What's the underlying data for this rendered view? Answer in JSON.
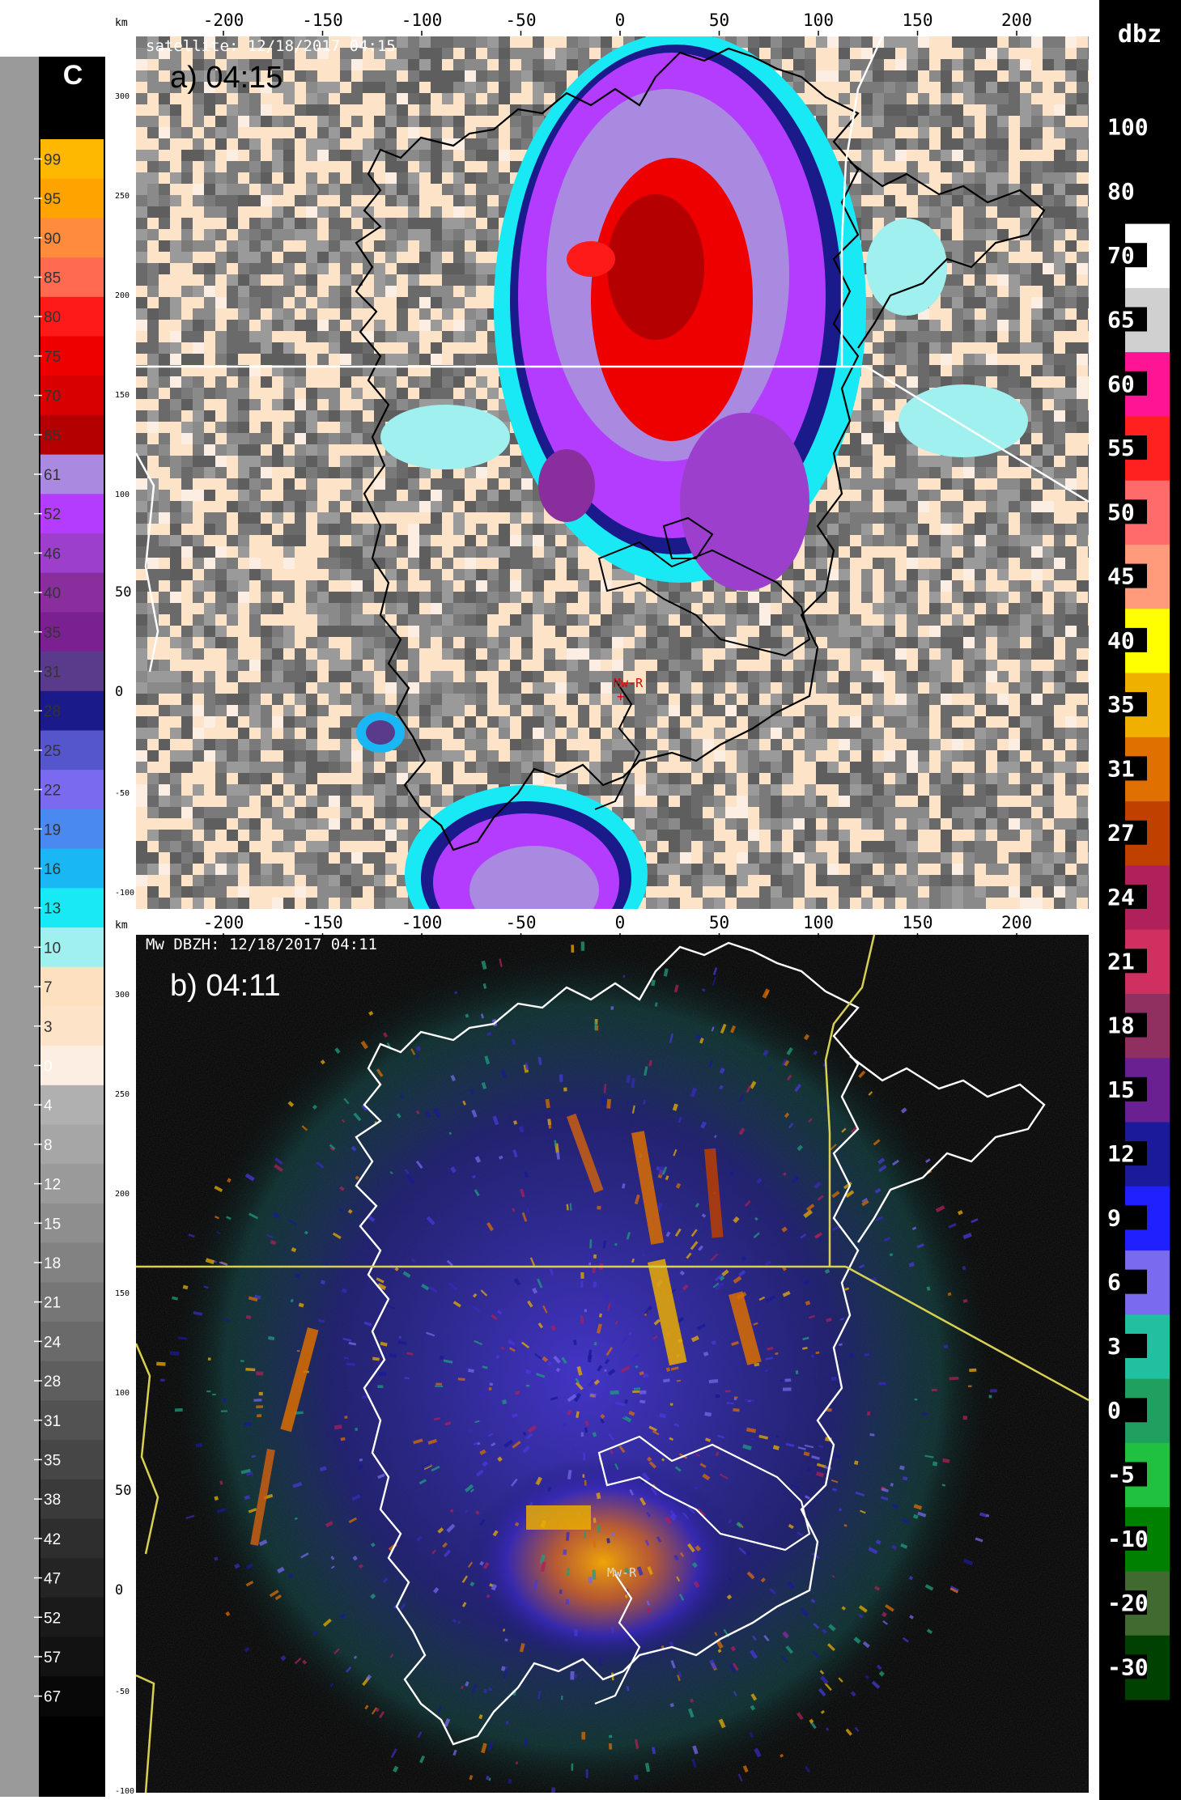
{
  "panel_a": {
    "header": "satellite: 12/18/2017 04:15",
    "label": "a) 04:15",
    "site_marker": "Mw-R"
  },
  "panel_b": {
    "header": "Mw DBZH: 12/18/2017 04:11",
    "label": "b) 04:11",
    "site_marker": "Mw-R"
  },
  "axes": {
    "x_unit": "km",
    "y_unit": "km",
    "x_ticks": [
      "-200",
      "-150",
      "-100",
      "-50",
      "0",
      "50",
      "100",
      "150",
      "200"
    ],
    "y_ticks": [
      "300",
      "250",
      "200",
      "150",
      "100",
      "50",
      "0",
      "-50",
      "-100"
    ]
  },
  "left_scale": {
    "title": "C",
    "entries": [
      {
        "label": "99",
        "color": "#ffb800"
      },
      {
        "label": "95",
        "color": "#ffa300"
      },
      {
        "label": "90",
        "color": "#ff8c3c"
      },
      {
        "label": "85",
        "color": "#ff6a50"
      },
      {
        "label": "80",
        "color": "#ff1a1a"
      },
      {
        "label": "75",
        "color": "#ee0000"
      },
      {
        "label": "70",
        "color": "#d80000"
      },
      {
        "label": "65",
        "color": "#b40000"
      },
      {
        "label": "61",
        "color": "#a98ae0"
      },
      {
        "label": "52",
        "color": "#b43cff"
      },
      {
        "label": "46",
        "color": "#9b3fcc"
      },
      {
        "label": "40",
        "color": "#8a2e9e"
      },
      {
        "label": "35",
        "color": "#7b2090"
      },
      {
        "label": "31",
        "color": "#5a3a8a"
      },
      {
        "label": "28",
        "color": "#1a1a8a"
      },
      {
        "label": "25",
        "color": "#5555cc"
      },
      {
        "label": "22",
        "color": "#7a6af0"
      },
      {
        "label": "19",
        "color": "#4a8af0"
      },
      {
        "label": "16",
        "color": "#19b8f5"
      },
      {
        "label": "13",
        "color": "#19e8f5"
      },
      {
        "label": "10",
        "color": "#a0f0f0"
      },
      {
        "label": "7",
        "color": "#fde0c0"
      },
      {
        "label": "3",
        "color": "#fde4c8"
      },
      {
        "label": "0",
        "color": "#fdeee4"
      },
      {
        "label": "4",
        "color": "#b0b0b0"
      },
      {
        "label": "8",
        "color": "#a6a6a6"
      },
      {
        "label": "12",
        "color": "#9a9a9a"
      },
      {
        "label": "15",
        "color": "#8e8e8e"
      },
      {
        "label": "18",
        "color": "#828282"
      },
      {
        "label": "21",
        "color": "#767676"
      },
      {
        "label": "24",
        "color": "#6a6a6a"
      },
      {
        "label": "28",
        "color": "#5e5e5e"
      },
      {
        "label": "31",
        "color": "#525252"
      },
      {
        "label": "35",
        "color": "#464646"
      },
      {
        "label": "38",
        "color": "#3a3a3a"
      },
      {
        "label": "42",
        "color": "#2e2e2e"
      },
      {
        "label": "47",
        "color": "#242424"
      },
      {
        "label": "52",
        "color": "#1a1a1a"
      },
      {
        "label": "57",
        "color": "#121212"
      },
      {
        "label": "67",
        "color": "#080808"
      }
    ]
  },
  "right_scale": {
    "title": "dbz",
    "entries": [
      {
        "label": "100",
        "color": "#000000"
      },
      {
        "label": "80",
        "color": "#000000"
      },
      {
        "label": "70",
        "color": "#ffffff"
      },
      {
        "label": "65",
        "color": "#d0d0d0"
      },
      {
        "label": "60",
        "color": "#ff1493"
      },
      {
        "label": "55",
        "color": "#ff2020"
      },
      {
        "label": "50",
        "color": "#ff6a6a"
      },
      {
        "label": "45",
        "color": "#ff9a7a"
      },
      {
        "label": "40",
        "color": "#ffff00"
      },
      {
        "label": "35",
        "color": "#f0b000"
      },
      {
        "label": "31",
        "color": "#e07000"
      },
      {
        "label": "27",
        "color": "#c04000"
      },
      {
        "label": "24",
        "color": "#b0205a"
      },
      {
        "label": "21",
        "color": "#d03060"
      },
      {
        "label": "18",
        "color": "#903060"
      },
      {
        "label": "15",
        "color": "#6a2090"
      },
      {
        "label": "12",
        "color": "#1a1a9a"
      },
      {
        "label": "9",
        "color": "#2020ff"
      },
      {
        "label": "6",
        "color": "#7a6af0"
      },
      {
        "label": "3",
        "color": "#20c0a0"
      },
      {
        "label": "0",
        "color": "#20a060"
      },
      {
        "label": "-5",
        "color": "#20c040"
      },
      {
        "label": "-10",
        "color": "#008000"
      },
      {
        "label": "-20",
        "color": "#406a30"
      },
      {
        "label": "-30",
        "color": "#004000"
      }
    ]
  }
}
